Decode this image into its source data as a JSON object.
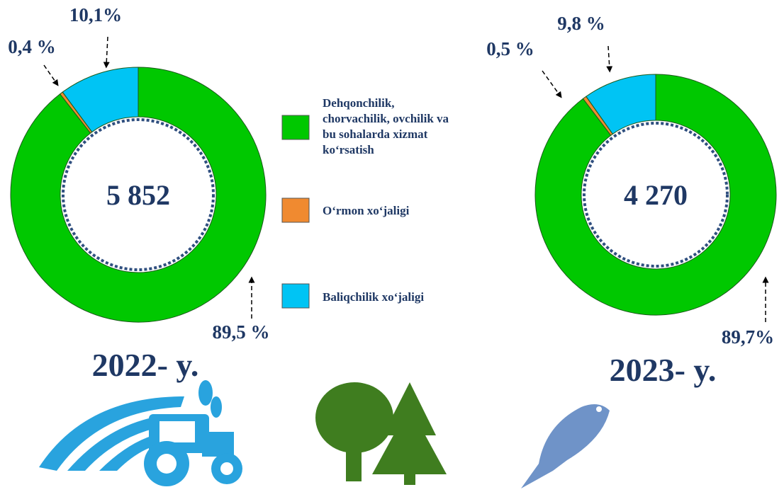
{
  "chart_data": {
    "type": "donut",
    "categories": [
      "Dehqonchilik, chorvachilik, ovchilik va bu sohalarda xizmat ko‘rsatish",
      "O‘rmon xo‘jaligi",
      "Baliqchilik xo‘jaligi"
    ],
    "colors": [
      "#00c800",
      "#f08a30",
      "#00c4f4"
    ],
    "series": [
      {
        "name": "2022- y.",
        "center_label": "5 852",
        "values": [
          89.5,
          0.4,
          10.1
        ],
        "value_labels": [
          "89,5 %",
          "0,4 %",
          "10,1%"
        ]
      },
      {
        "name": "2023- y.",
        "center_label": "4 270",
        "values": [
          89.7,
          0.5,
          9.8
        ],
        "value_labels": [
          "89,7%",
          "0,5 %",
          "9,8 %"
        ]
      }
    ]
  }
}
